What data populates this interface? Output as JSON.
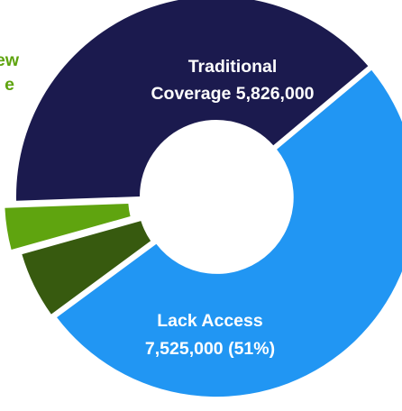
{
  "chart_data": {
    "type": "pie",
    "variant": "exploded-donut",
    "slices": [
      {
        "label_lines": [
          "Traditional",
          "Coverage 5,826,000"
        ],
        "value": 5826000,
        "color": "#1B1A4E",
        "text_color": "#FFFFFF"
      },
      {
        "label_lines": [
          "Lack Access",
          "7,525,000 (51%)"
        ],
        "value": 7525000,
        "percent": 51,
        "color": "#2196F3",
        "text_color": "#FFFFFF"
      },
      {
        "label_lines": [],
        "value": 850000,
        "color": "#375A0F"
      },
      {
        "label_lines": [
          "ew",
          "e"
        ],
        "value": 560000,
        "color": "#5FA40F",
        "text_color": "#5FA40F"
      }
    ]
  }
}
